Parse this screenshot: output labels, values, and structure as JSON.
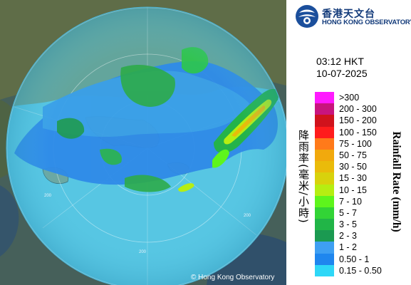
{
  "header": {
    "logo_zh": "香港天文台",
    "logo_en": "HONG KONG OBSERVATORY",
    "time": "03:12 HKT",
    "date": "10-07-2025"
  },
  "legend": {
    "title_zh": "降雨率(毫米/小時)",
    "title_en": "Rainfall Rate (mm/h)",
    "items": [
      {
        "label": ">300",
        "color": "#ff1aff"
      },
      {
        "label": "200 - 300",
        "color": "#c8147e"
      },
      {
        "label": "150 - 200",
        "color": "#d0121c"
      },
      {
        "label": "100 - 150",
        "color": "#ff1c1c"
      },
      {
        "label": "75 - 100",
        "color": "#ff7a1a"
      },
      {
        "label": "50 - 75",
        "color": "#f1a90d"
      },
      {
        "label": "30 - 50",
        "color": "#eabb0a"
      },
      {
        "label": "15 - 30",
        "color": "#d8d20c"
      },
      {
        "label": "10 - 15",
        "color": "#b6ee12"
      },
      {
        "label": "7 - 10",
        "color": "#5ef51c"
      },
      {
        "label": "5 - 7",
        "color": "#32d436"
      },
      {
        "label": "3 - 5",
        "color": "#21b547"
      },
      {
        "label": "2 - 3",
        "color": "#1b9a51"
      },
      {
        "label": "1 - 2",
        "color": "#3e9ff2"
      },
      {
        "label": "0.50 - 1",
        "color": "#1f86ee"
      },
      {
        "label": "0.15 - 0.50",
        "color": "#2ed7f7"
      }
    ]
  },
  "map": {
    "credit": "© Hong Kong Observatory",
    "range_labels": [
      "200",
      "200",
      "200"
    ]
  },
  "colors": {
    "radar_disc": "#56c4e2",
    "sea_outside": "#37566c",
    "land_outside": "#5d6b45"
  }
}
